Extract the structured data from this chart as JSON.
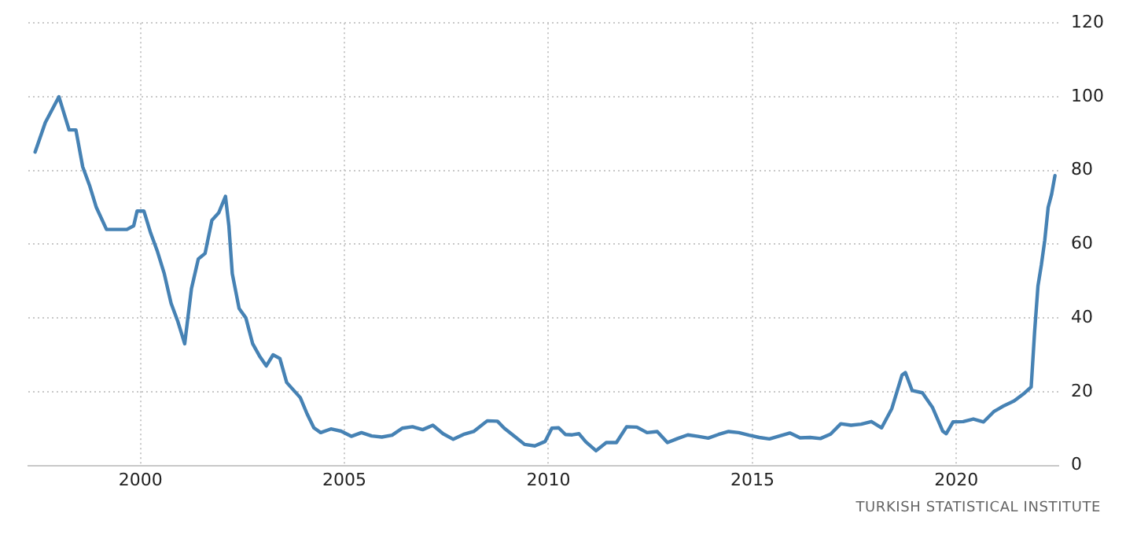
{
  "chart_data": {
    "type": "line",
    "x": [
      "1997-06",
      "1997-09",
      "1998-01",
      "1998-04",
      "1998-06",
      "1998-08",
      "1998-10",
      "1998-12",
      "1999-03",
      "1999-06",
      "1999-09",
      "1999-11",
      "1999-12",
      "2000-02",
      "2000-04",
      "2000-06",
      "2000-08",
      "2000-10",
      "2000-12",
      "2001-02",
      "2001-04",
      "2001-06",
      "2001-08",
      "2001-10",
      "2001-12",
      "2002-02",
      "2002-03",
      "2002-04",
      "2002-06",
      "2002-08",
      "2002-10",
      "2002-12",
      "2003-02",
      "2003-04",
      "2003-06",
      "2003-08",
      "2003-12",
      "2004-02",
      "2004-04",
      "2004-06",
      "2004-09",
      "2004-12",
      "2005-03",
      "2005-06",
      "2005-09",
      "2005-12",
      "2006-03",
      "2006-06",
      "2006-09",
      "2006-12",
      "2007-03",
      "2007-06",
      "2007-09",
      "2007-12",
      "2008-03",
      "2008-07",
      "2008-10",
      "2008-12",
      "2009-03",
      "2009-06",
      "2009-09",
      "2009-12",
      "2010-02",
      "2010-04",
      "2010-06",
      "2010-08",
      "2010-10",
      "2010-12",
      "2011-03",
      "2011-06",
      "2011-09",
      "2011-12",
      "2012-03",
      "2012-06",
      "2012-09",
      "2012-12",
      "2013-03",
      "2013-06",
      "2013-09",
      "2013-12",
      "2014-03",
      "2014-06",
      "2014-09",
      "2014-12",
      "2015-03",
      "2015-06",
      "2015-09",
      "2015-12",
      "2016-03",
      "2016-06",
      "2016-09",
      "2016-12",
      "2017-03",
      "2017-06",
      "2017-09",
      "2017-12",
      "2018-03",
      "2018-06",
      "2018-09",
      "2018-10",
      "2018-12",
      "2019-03",
      "2019-06",
      "2019-09",
      "2019-10",
      "2019-12",
      "2020-03",
      "2020-06",
      "2020-09",
      "2020-12",
      "2021-03",
      "2021-06",
      "2021-09",
      "2021-11",
      "2021-12",
      "2022-01",
      "2022-02",
      "2022-03",
      "2022-04",
      "2022-05",
      "2022-06"
    ],
    "series": [
      {
        "color": "#4682b4",
        "values": [
          85,
          93,
          100,
          91,
          91,
          81,
          76,
          70,
          64,
          64,
          64,
          65,
          69,
          69,
          63,
          58,
          52,
          44,
          39,
          33,
          48,
          56,
          57.5,
          66.5,
          68.5,
          73,
          65,
          52,
          42.6,
          40,
          33,
          29.7,
          27,
          30,
          29,
          22.5,
          18.4,
          14,
          10.2,
          8.9,
          9.9,
          9.3,
          7.9,
          8.9,
          8,
          7.7,
          8.2,
          10.1,
          10.5,
          9.7,
          10.9,
          8.6,
          7.1,
          8.4,
          9.2,
          12.1,
          12,
          10.1,
          7.9,
          5.7,
          5.3,
          6.5,
          10.1,
          10.2,
          8.4,
          8.3,
          8.6,
          6.4,
          4,
          6.2,
          6.2,
          10.5,
          10.4,
          8.9,
          9.2,
          6.2,
          7.3,
          8.3,
          7.9,
          7.4,
          8.4,
          9.2,
          8.9,
          8.2,
          7.6,
          7.2,
          8,
          8.8,
          7.5,
          7.6,
          7.3,
          8.5,
          11.3,
          10.9,
          11.2,
          11.9,
          10.2,
          15.4,
          24.5,
          25.2,
          20.3,
          19.7,
          15.7,
          9.3,
          8.6,
          11.8,
          11.9,
          12.6,
          11.8,
          14.6,
          16.2,
          17.5,
          19.6,
          21.3,
          36.1,
          48.7,
          54.4,
          61.1,
          70,
          73.5,
          78.6
        ]
      }
    ],
    "xlim": [
      "1997-04",
      "2022-07"
    ],
    "xticks": [
      {
        "value": "2000",
        "label": "2000"
      },
      {
        "value": "2005",
        "label": "2005"
      },
      {
        "value": "2010",
        "label": "2010"
      },
      {
        "value": "2015",
        "label": "2015"
      },
      {
        "value": "2020",
        "label": "2020"
      }
    ],
    "ylim": [
      0,
      120
    ],
    "yticks": [
      0,
      20,
      40,
      60,
      80,
      100,
      120
    ],
    "grid": true,
    "legend": false,
    "marker": "none",
    "line_style": "solid",
    "annotations": [
      "TURKISH STATISTICAL INSTITUTE"
    ]
  }
}
